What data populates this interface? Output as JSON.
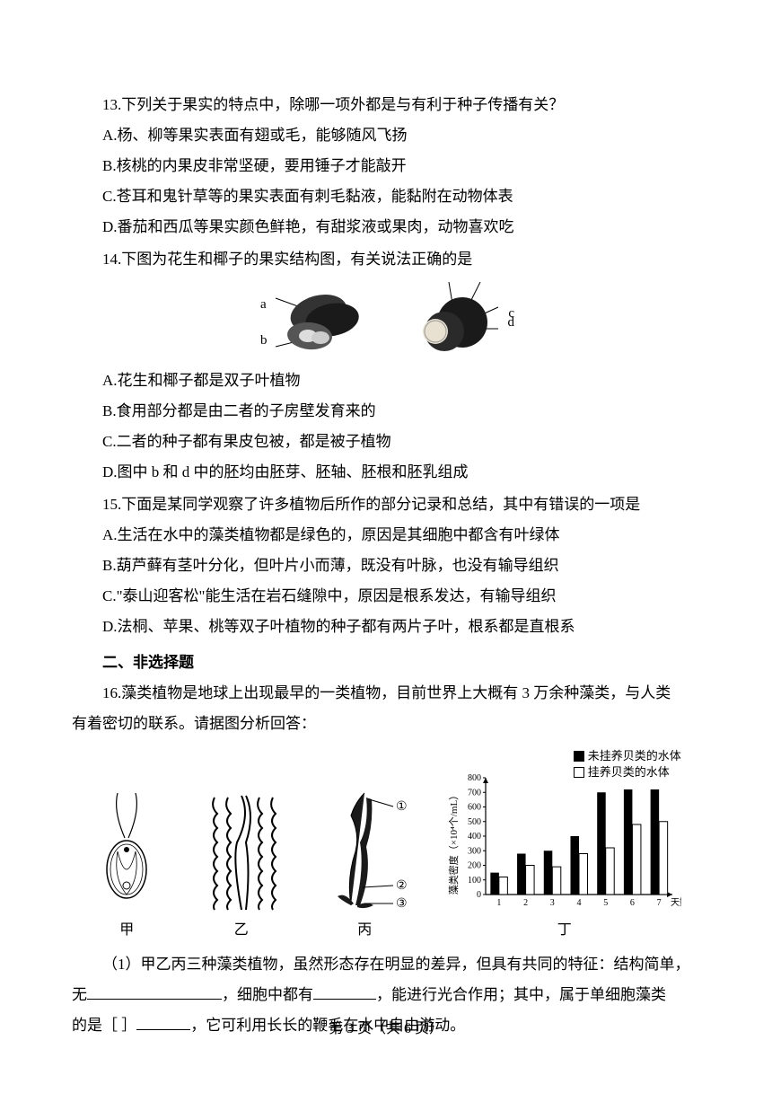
{
  "q13": {
    "stem": "13.下列关于果实的特点中，除哪一项外都是与有利于种子传播有关？",
    "A": "A.杨、柳等果实表面有翅或毛，能够随风飞扬",
    "B": "B.核桃的内果皮非常坚硬，要用锤子才能敲开",
    "C": "C.苍耳和鬼针草等的果实表面有刺毛黏液，能黏附在动物体表",
    "D": "D.番茄和西瓜等果实颜色鲜艳，有甜浆液或果肉，动物喜欢吃"
  },
  "q14": {
    "stem": "14.下图为花生和椰子的果实结构图，有关说法正确的是",
    "labels": {
      "a": "a",
      "b": "b",
      "c": "c",
      "d": "d"
    },
    "A": "A.花生和椰子都是双子叶植物",
    "B": "B.食用部分都是由二者的子房壁发育来的",
    "C": "C.二者的种子都有果皮包被，都是被子植物",
    "D": "D.图中 b 和 d 中的胚均由胚芽、胚轴、胚根和胚乳组成"
  },
  "q15": {
    "stem": "15.下面是某同学观察了许多植物后所作的部分记录和总结，其中有错误的一项是",
    "A": "A.生活在水中的藻类植物都是绿色的，原因是其细胞中都含有叶绿体",
    "B": "B.葫芦藓有茎叶分化，但叶片小而薄，既没有叶脉，也没有输导组织",
    "C": "C.\"泰山迎客松\"能生活在岩石缝隙中，原因是根系发达，有输导组织",
    "D": "D.法桐、苹果、桃等双子叶植物的种子都有两片子叶，根系都是直根系"
  },
  "section2": "二、非选择题",
  "q16": {
    "stem1": "16.藻类植物是地球上出现最早的一类植物，目前世界上大概有 3 万余种藻类，与人类",
    "stem2": "有着密切的联系。请据图分析回答：",
    "fig_labels": {
      "jia": "甲",
      "yi": "乙",
      "bing": "丙",
      "ding": "丁"
    },
    "bing_marks": {
      "m1": "①",
      "m2": "②",
      "m3": "③"
    },
    "fill_prefix": "（1）甲乙丙三种藻类植物，虽然形态存在明显的差异，但具有共同的特征：结构简单，",
    "fill_line2a": "无",
    "fill_line2b": "，细胞中都有",
    "fill_line2c": "，能进行光合作用；其中，属于单细胞藻类",
    "fill_line3a": "的是［  ］",
    "fill_line3b": "，它可利用长长的鞭毛在水中自由游动。"
  },
  "chart": {
    "type": "bar",
    "legend1": "未挂养贝类的水体",
    "legend2": "挂养贝类的水体",
    "ylabel": "藻类密度（×10⁴个/mL）",
    "xlabel": "天数/d",
    "yticks": [
      0,
      100,
      200,
      300,
      400,
      500,
      600,
      700,
      800
    ],
    "xticks": [
      "1",
      "2",
      "3",
      "4",
      "5",
      "6",
      "7"
    ],
    "series_filled": [
      150,
      280,
      300,
      400,
      700,
      720,
      720
    ],
    "series_empty": [
      120,
      200,
      190,
      280,
      320,
      480,
      500
    ],
    "ylim": [
      0,
      800
    ],
    "bar_color_filled": "#000000",
    "bar_color_empty": "#ffffff",
    "axis_color": "#000000",
    "background_color": "#ffffff"
  },
  "footer": "第 3 页（共 6 页）"
}
